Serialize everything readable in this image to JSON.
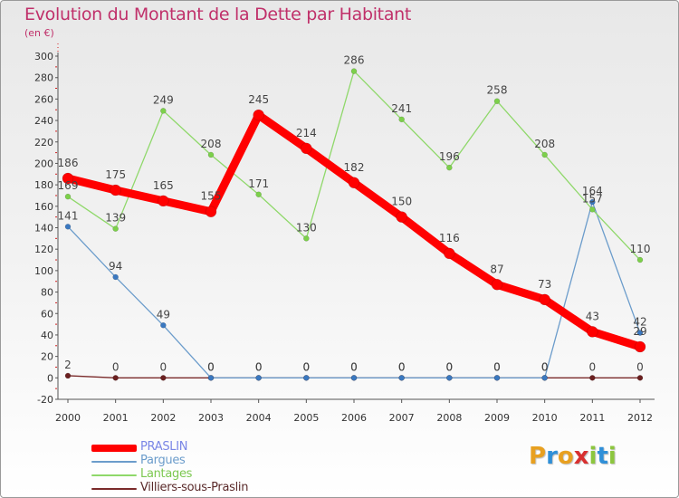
{
  "header": {
    "title": "Evolution du Montant de la Dette par Habitant",
    "subtitle": "(en €)"
  },
  "logo": {
    "text": "Proxiti",
    "letters": [
      {
        "ch": "P",
        "color": "#e8a020"
      },
      {
        "ch": "r",
        "color": "#2f8fd8"
      },
      {
        "ch": "o",
        "color": "#e8a020"
      },
      {
        "ch": "x",
        "color": "#d83030"
      },
      {
        "ch": "i",
        "color": "#8cc63e"
      },
      {
        "ch": "t",
        "color": "#2f8fd8"
      },
      {
        "ch": "i",
        "color": "#8cc63e"
      }
    ]
  },
  "chart_data": {
    "type": "line",
    "title": "Evolution du Montant de la Dette par Habitant",
    "ylabel": "(en €)",
    "xlabel": "",
    "x": [
      "2000",
      "2001",
      "2002",
      "2003",
      "2004",
      "2005",
      "2006",
      "2007",
      "2008",
      "2009",
      "2010",
      "2011",
      "2012"
    ],
    "ylim": [
      -20,
      300
    ],
    "yticks": [
      -20,
      0,
      20,
      40,
      60,
      80,
      100,
      120,
      140,
      160,
      180,
      200,
      220,
      240,
      260,
      280,
      300
    ],
    "grid": false,
    "legend_position": "bottom-left",
    "series": [
      {
        "name": "PRASLIN",
        "color": "#ff0000",
        "values": [
          186,
          175,
          165,
          155,
          245,
          214,
          182,
          150,
          116,
          87,
          73,
          43,
          29
        ],
        "labels": [
          "186",
          "175",
          "165",
          "155",
          "245",
          "214",
          "182",
          "150",
          "116",
          "87",
          "73",
          "43",
          "29"
        ]
      },
      {
        "name": "Pargues",
        "color": "#6b9ccb",
        "values": [
          141,
          94,
          49,
          0,
          0,
          0,
          0,
          0,
          0,
          0,
          0,
          164,
          42
        ],
        "labels": [
          "141",
          "94",
          "49",
          "0",
          "0",
          "0",
          "0",
          "0",
          "0",
          "0",
          "0",
          "164",
          "42"
        ]
      },
      {
        "name": "Lantages",
        "color": "#8fd86a",
        "values": [
          169,
          139,
          249,
          208,
          171,
          130,
          286,
          241,
          196,
          258,
          208,
          157,
          110
        ],
        "labels": [
          "169",
          "139",
          "249",
          "208",
          "171",
          "130",
          "286",
          "241",
          "196",
          "258",
          "208",
          "157",
          "110"
        ]
      },
      {
        "name": "Villiers-sous-Praslin",
        "color": "#7a2a2a",
        "values": [
          2,
          0,
          0,
          0,
          0,
          0,
          0,
          0,
          0,
          0,
          0,
          0,
          0
        ],
        "labels": [
          "2",
          "0",
          "0",
          "0",
          "0",
          "0",
          "0",
          "0",
          "0",
          "0",
          "0",
          "0",
          "0"
        ]
      }
    ]
  }
}
